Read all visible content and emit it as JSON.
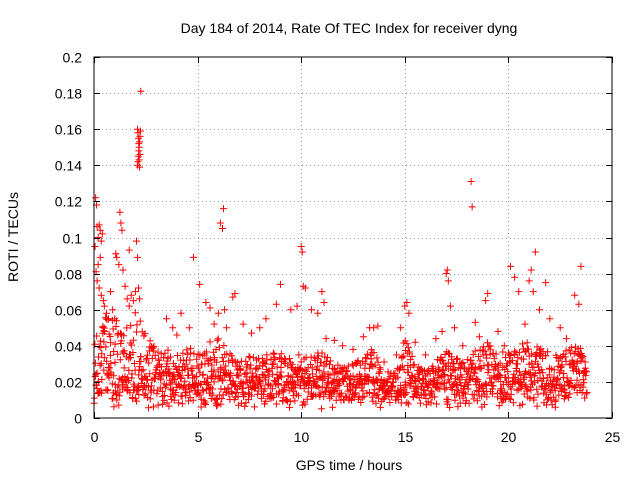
{
  "chart_data": {
    "type": "scatter",
    "title": "Day 184 of 2014, Rate Of TEC Index for receiver dyng",
    "xlabel": "GPS time / hours",
    "ylabel": "ROTI / TECUs",
    "xlim": [
      0,
      25
    ],
    "ylim": [
      0,
      0.2
    ],
    "xticks": [
      0,
      5,
      10,
      15,
      20,
      25
    ],
    "xtick_labels": [
      "0",
      "5",
      "10",
      "15",
      "20",
      "25"
    ],
    "yticks": [
      0,
      0.02,
      0.04,
      0.06,
      0.08,
      0.1,
      0.12,
      0.14,
      0.16,
      0.18,
      0.2
    ],
    "ytick_labels": [
      "0",
      "0.02",
      "0.04",
      "0.06",
      "0.08",
      "0.1",
      "0.12",
      "0.14",
      "0.16",
      "0.18",
      "0.2"
    ],
    "grid": true,
    "marker": "+",
    "color": "#ff0000",
    "series": [
      {
        "name": "ROTI",
        "points": [
          [
            0.05,
            0.095
          ],
          [
            0.08,
            0.122
          ],
          [
            0.12,
            0.118
          ],
          [
            0.15,
            0.106
          ],
          [
            0.2,
            0.1
          ],
          [
            0.25,
            0.107
          ],
          [
            0.3,
            0.104
          ],
          [
            0.35,
            0.098
          ],
          [
            0.4,
            0.102
          ],
          [
            0.3,
            0.089
          ],
          [
            0.2,
            0.085
          ],
          [
            0.1,
            0.081
          ],
          [
            0.15,
            0.076
          ],
          [
            0.25,
            0.072
          ],
          [
            0.35,
            0.068
          ],
          [
            0.45,
            0.065
          ],
          [
            0.5,
            0.062
          ],
          [
            0.6,
            0.058
          ],
          [
            0.7,
            0.055
          ],
          [
            0.8,
            0.07
          ],
          [
            0.9,
            0.06
          ],
          [
            1.0,
            0.055
          ],
          [
            1.05,
            0.091
          ],
          [
            1.1,
            0.089
          ],
          [
            1.2,
            0.085
          ],
          [
            1.25,
            0.114
          ],
          [
            1.3,
            0.108
          ],
          [
            1.35,
            0.104
          ],
          [
            1.4,
            0.082
          ],
          [
            1.5,
            0.073
          ],
          [
            1.6,
            0.066
          ],
          [
            1.7,
            0.062
          ],
          [
            1.8,
            0.068
          ],
          [
            1.9,
            0.065
          ],
          [
            2.0,
            0.07
          ],
          [
            2.05,
            0.098
          ],
          [
            2.1,
            0.089
          ],
          [
            2.15,
            0.072
          ],
          [
            2.2,
            0.066
          ],
          [
            1.7,
            0.093
          ],
          [
            2.1,
            0.14
          ],
          [
            2.12,
            0.142
          ],
          [
            2.14,
            0.145
          ],
          [
            2.16,
            0.148
          ],
          [
            2.18,
            0.15
          ],
          [
            2.2,
            0.153
          ],
          [
            2.22,
            0.156
          ],
          [
            2.24,
            0.159
          ],
          [
            2.1,
            0.16
          ],
          [
            2.12,
            0.158
          ],
          [
            2.14,
            0.155
          ],
          [
            2.16,
            0.152
          ],
          [
            2.18,
            0.143
          ],
          [
            2.2,
            0.139
          ],
          [
            2.22,
            0.146
          ],
          [
            2.26,
            0.181
          ],
          [
            3.5,
            0.055
          ],
          [
            3.8,
            0.05
          ],
          [
            4.0,
            0.046
          ],
          [
            4.2,
            0.058
          ],
          [
            4.6,
            0.05
          ],
          [
            4.8,
            0.089
          ],
          [
            5.1,
            0.074
          ],
          [
            5.4,
            0.064
          ],
          [
            5.6,
            0.061
          ],
          [
            5.8,
            0.052
          ],
          [
            6.0,
            0.058
          ],
          [
            6.1,
            0.108
          ],
          [
            6.2,
            0.105
          ],
          [
            6.25,
            0.116
          ],
          [
            6.3,
            0.06
          ],
          [
            6.4,
            0.05
          ],
          [
            6.7,
            0.067
          ],
          [
            6.8,
            0.069
          ],
          [
            7.2,
            0.052
          ],
          [
            7.6,
            0.047
          ],
          [
            8.0,
            0.05
          ],
          [
            8.3,
            0.055
          ],
          [
            8.8,
            0.063
          ],
          [
            9.0,
            0.074
          ],
          [
            9.5,
            0.06
          ],
          [
            9.8,
            0.062
          ],
          [
            10.0,
            0.095
          ],
          [
            10.05,
            0.092
          ],
          [
            10.1,
            0.073
          ],
          [
            10.2,
            0.072
          ],
          [
            10.5,
            0.06
          ],
          [
            10.8,
            0.058
          ],
          [
            11.0,
            0.07
          ],
          [
            11.1,
            0.064
          ],
          [
            11.2,
            0.044
          ],
          [
            11.6,
            0.043
          ],
          [
            12.0,
            0.04
          ],
          [
            12.5,
            0.038
          ],
          [
            13.0,
            0.045
          ],
          [
            13.3,
            0.05
          ],
          [
            13.5,
            0.05
          ],
          [
            13.7,
            0.051
          ],
          [
            14.0,
            0.031
          ],
          [
            14.6,
            0.035
          ],
          [
            14.8,
            0.05
          ],
          [
            15.0,
            0.062
          ],
          [
            15.1,
            0.064
          ],
          [
            15.2,
            0.058
          ],
          [
            15.5,
            0.042
          ],
          [
            16.0,
            0.035
          ],
          [
            16.5,
            0.044
          ],
          [
            16.8,
            0.048
          ],
          [
            17.0,
            0.08
          ],
          [
            17.05,
            0.082
          ],
          [
            17.1,
            0.076
          ],
          [
            17.2,
            0.062
          ],
          [
            17.4,
            0.05
          ],
          [
            17.8,
            0.04
          ],
          [
            18.2,
            0.131
          ],
          [
            18.25,
            0.117
          ],
          [
            18.4,
            0.053
          ],
          [
            18.6,
            0.045
          ],
          [
            18.9,
            0.065
          ],
          [
            19.0,
            0.069
          ],
          [
            19.5,
            0.048
          ],
          [
            19.8,
            0.04
          ],
          [
            20.1,
            0.084
          ],
          [
            20.3,
            0.078
          ],
          [
            20.5,
            0.07
          ],
          [
            20.8,
            0.052
          ],
          [
            21.0,
            0.076
          ],
          [
            21.1,
            0.082
          ],
          [
            21.2,
            0.07
          ],
          [
            21.3,
            0.092
          ],
          [
            21.5,
            0.06
          ],
          [
            21.8,
            0.075
          ],
          [
            22.0,
            0.055
          ],
          [
            22.5,
            0.05
          ],
          [
            22.8,
            0.044
          ],
          [
            23.2,
            0.068
          ],
          [
            23.4,
            0.063
          ],
          [
            23.5,
            0.084
          ]
        ]
      }
    ],
    "dense_band": {
      "description": "continuous dense cloud of samples between 0 and 23.8 hours",
      "x_range": [
        0,
        23.8
      ],
      "baseline_range": [
        0.005,
        0.02
      ],
      "upper_envelope": [
        [
          0.0,
          0.045
        ],
        [
          0.5,
          0.06
        ],
        [
          1.0,
          0.055
        ],
        [
          1.5,
          0.05
        ],
        [
          2.0,
          0.06
        ],
        [
          2.5,
          0.045
        ],
        [
          3.0,
          0.04
        ],
        [
          3.5,
          0.038
        ],
        [
          4.0,
          0.035
        ],
        [
          4.5,
          0.04
        ],
        [
          5.0,
          0.036
        ],
        [
          5.5,
          0.042
        ],
        [
          6.0,
          0.045
        ],
        [
          6.5,
          0.036
        ],
        [
          7.0,
          0.032
        ],
        [
          7.5,
          0.035
        ],
        [
          8.0,
          0.034
        ],
        [
          8.5,
          0.036
        ],
        [
          9.0,
          0.038
        ],
        [
          9.5,
          0.032
        ],
        [
          10.0,
          0.04
        ],
        [
          10.5,
          0.035
        ],
        [
          11.0,
          0.04
        ],
        [
          11.5,
          0.032
        ],
        [
          12.0,
          0.028
        ],
        [
          12.5,
          0.03
        ],
        [
          13.0,
          0.035
        ],
        [
          13.5,
          0.04
        ],
        [
          14.0,
          0.026
        ],
        [
          14.5,
          0.025
        ],
        [
          15.0,
          0.045
        ],
        [
          15.5,
          0.03
        ],
        [
          16.0,
          0.026
        ],
        [
          16.5,
          0.032
        ],
        [
          17.0,
          0.04
        ],
        [
          17.5,
          0.035
        ],
        [
          18.0,
          0.036
        ],
        [
          18.5,
          0.038
        ],
        [
          19.0,
          0.042
        ],
        [
          19.5,
          0.036
        ],
        [
          20.0,
          0.038
        ],
        [
          20.5,
          0.04
        ],
        [
          21.0,
          0.045
        ],
        [
          21.5,
          0.04
        ],
        [
          22.0,
          0.036
        ],
        [
          22.5,
          0.034
        ],
        [
          23.0,
          0.04
        ],
        [
          23.5,
          0.045
        ],
        [
          23.8,
          0.03
        ]
      ]
    }
  }
}
